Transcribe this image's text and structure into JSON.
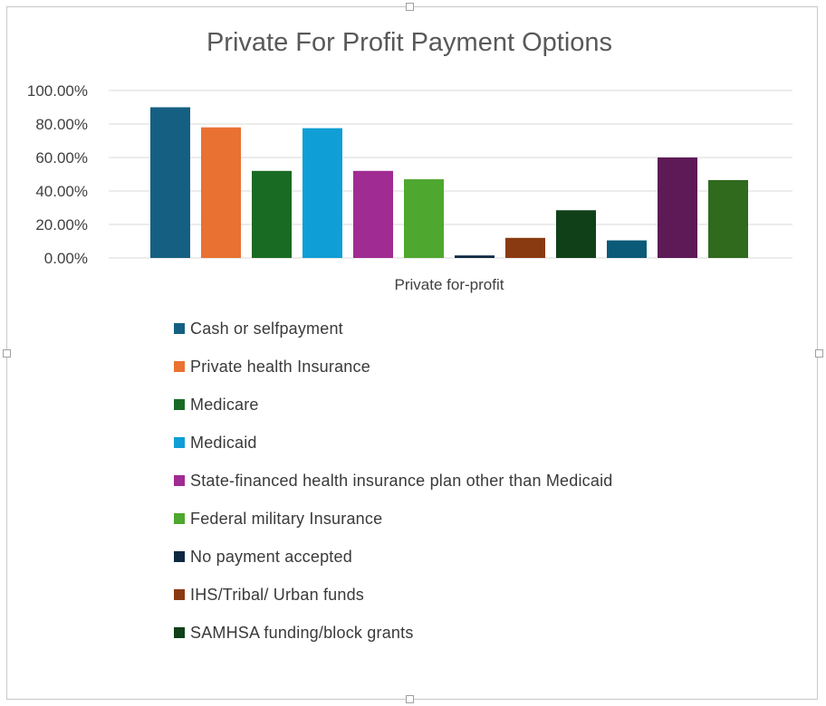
{
  "chart_data": {
    "type": "bar",
    "title": "Private For Profit Payment Options",
    "categories": [
      "Private for-profit"
    ],
    "ylim": [
      0,
      100
    ],
    "yticks": [
      {
        "value": 0,
        "label": "0.00%"
      },
      {
        "value": 20,
        "label": "20.00%"
      },
      {
        "value": 40,
        "label": "40.00%"
      },
      {
        "value": 60,
        "label": "60.00%"
      },
      {
        "value": 80,
        "label": "80.00%"
      },
      {
        "value": 100,
        "label": "100.00%"
      }
    ],
    "grid": true,
    "legend_position": "bottom",
    "series": [
      {
        "name": "Cash or selfpayment",
        "values": [
          90
        ],
        "color": "#156082"
      },
      {
        "name": "Private health Insurance",
        "values": [
          78
        ],
        "color": "#E97132"
      },
      {
        "name": "Medicare",
        "values": [
          52
        ],
        "color": "#196B24"
      },
      {
        "name": "Medicaid",
        "values": [
          77.5
        ],
        "color": "#0F9ED5"
      },
      {
        "name": "State-financed health insurance plan other than Medicaid",
        "values": [
          52
        ],
        "color": "#A02B93"
      },
      {
        "name": "Federal military Insurance",
        "values": [
          47
        ],
        "color": "#4EA72E"
      },
      {
        "name": "No payment accepted",
        "values": [
          1.5
        ],
        "color": "#0E2841"
      },
      {
        "name": "IHS/Tribal/ Urban funds",
        "values": [
          12
        ],
        "color": "#8A3A11"
      },
      {
        "name": "SAMHSA funding/block grants",
        "values": [
          28.5
        ],
        "color": "#0F4018"
      },
      {
        "name": "",
        "values": [
          10.5
        ],
        "color": "#0A5A78"
      },
      {
        "name": "",
        "values": [
          60
        ],
        "color": "#5E1957"
      },
      {
        "name": "",
        "values": [
          46.5
        ],
        "color": "#2F6A1D"
      }
    ],
    "legend_entries": [
      {
        "label": "Cash or selfpayment",
        "color": "#156082"
      },
      {
        "label": "Private health Insurance",
        "color": "#E97132"
      },
      {
        "label": "Medicare",
        "color": "#196B24"
      },
      {
        "label": "Medicaid",
        "color": "#0F9ED5"
      },
      {
        "label": "State-financed health insurance plan other than Medicaid",
        "color": "#A02B93"
      },
      {
        "label": "Federal military Insurance",
        "color": "#4EA72E"
      },
      {
        "label": "No payment accepted",
        "color": "#0E2841"
      },
      {
        "label": "IHS/Tribal/ Urban funds",
        "color": "#8A3A11"
      },
      {
        "label": "SAMHSA funding/block grants",
        "color": "#0F4018"
      }
    ]
  }
}
